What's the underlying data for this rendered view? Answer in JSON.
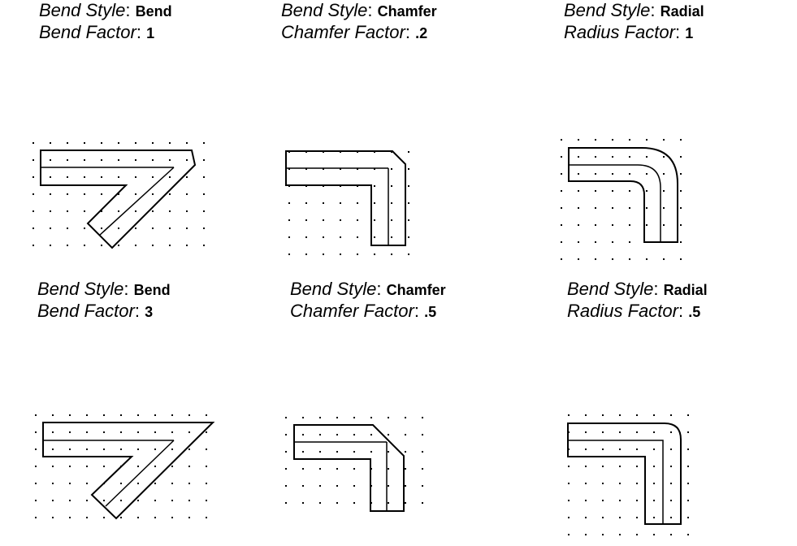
{
  "panels": [
    {
      "style_key": "Bend Style",
      "style_val": "Bend",
      "factor_key": "Bend Factor",
      "factor_val": "1"
    },
    {
      "style_key": "Bend Style",
      "style_val": "Chamfer",
      "factor_key": "Chamfer Factor",
      "factor_val": ".2"
    },
    {
      "style_key": "Bend Style",
      "style_val": "Radial",
      "factor_key": "Radius Factor",
      "factor_val": "1"
    },
    {
      "style_key": "Bend Style",
      "style_val": "Bend",
      "factor_key": "Bend Factor",
      "factor_val": "3"
    },
    {
      "style_key": "Bend Style",
      "style_val": "Chamfer",
      "factor_key": "Chamfer Factor",
      "factor_val": ".5"
    },
    {
      "style_key": "Bend Style",
      "style_val": "Radial",
      "factor_key": "Radius Factor",
      "factor_val": ".5"
    }
  ]
}
